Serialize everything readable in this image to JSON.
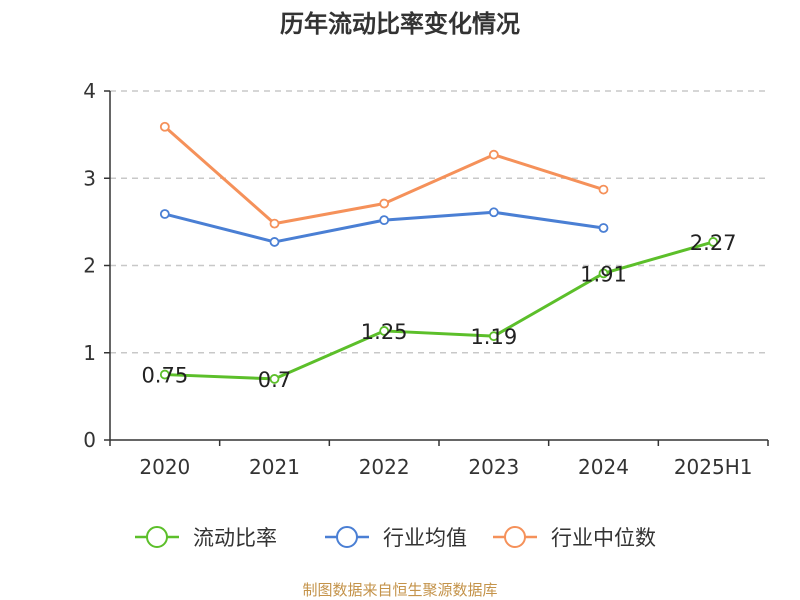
{
  "chart_data": {
    "type": "line",
    "title": "历年流动比率变化情况",
    "categories": [
      "2020",
      "2021",
      "2022",
      "2023",
      "2024",
      "2025H1"
    ],
    "ylim": [
      0,
      4
    ],
    "yticks": [
      "0",
      "1",
      "2",
      "3",
      "4"
    ],
    "grid": true,
    "legend_position": "bottom",
    "series": [
      {
        "name": "流动比率",
        "color": "#5cbf2a",
        "values": [
          0.75,
          0.7,
          1.25,
          1.19,
          1.91,
          2.27
        ],
        "labels": [
          "0.75",
          "0.7",
          "1.25",
          "1.19",
          "1.91",
          "2.27"
        ]
      },
      {
        "name": "行业均值",
        "color": "#4a7fd4",
        "values": [
          2.59,
          2.27,
          2.52,
          2.61,
          2.43,
          null
        ]
      },
      {
        "name": "行业中位数",
        "color": "#f5915a",
        "values": [
          3.59,
          2.48,
          2.71,
          3.27,
          2.87,
          null
        ]
      }
    ]
  },
  "source_text": "制图数据来自恒生聚源数据库"
}
